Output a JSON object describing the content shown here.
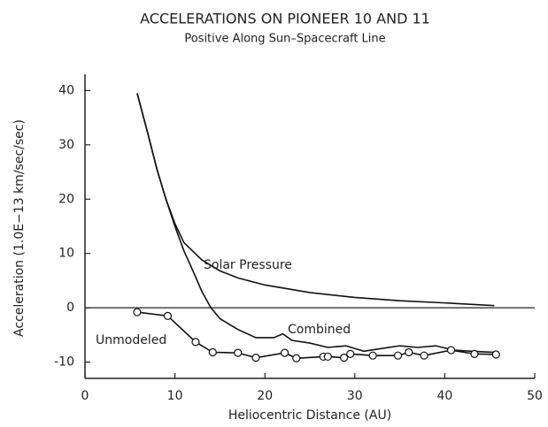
{
  "chart_data": {
    "type": "line",
    "title": "ACCELERATIONS ON PIONEER 10 AND 11",
    "subtitle": "Positive Along Sun–Spacecraft Line",
    "x_label": "Heliocentric Distance (AU)",
    "y_label": "Acceleration (1.0E−13 km/sec/sec)",
    "xlim": [
      0,
      50
    ],
    "ylim": [
      -13,
      43
    ],
    "xticks": [
      0,
      10,
      20,
      30,
      40,
      50
    ],
    "yticks": [
      -10,
      0,
      10,
      20,
      30,
      40
    ],
    "zero_line": true,
    "series": [
      {
        "name": "Solar Pressure",
        "color": "#111111",
        "marker": "none",
        "x": [
          5.8,
          7,
          8,
          9,
          10,
          11,
          13,
          15,
          17,
          20,
          25,
          30,
          35,
          40,
          45.5
        ],
        "values": [
          39.5,
          32,
          25.5,
          20,
          15.5,
          12,
          8.8,
          6.8,
          5.5,
          4.2,
          2.8,
          1.9,
          1.3,
          0.9,
          0.4
        ]
      },
      {
        "name": "Combined",
        "color": "#111111",
        "marker": "none",
        "x": [
          5.8,
          7,
          8,
          9,
          10,
          11,
          12,
          13,
          14,
          15,
          17,
          19,
          21,
          22,
          23,
          25,
          27,
          29,
          31,
          33,
          35,
          37,
          39,
          41,
          43,
          45.5
        ],
        "values": [
          39.5,
          32,
          25.5,
          20,
          15,
          10.5,
          6.8,
          3,
          0,
          -2,
          -4,
          -5.5,
          -5.5,
          -4.8,
          -6,
          -6.5,
          -7.3,
          -7,
          -8,
          -7.5,
          -7,
          -7.3,
          -7,
          -7.8,
          -8,
          -8.2
        ]
      },
      {
        "name": "Unmodeled",
        "color": "#111111",
        "marker": "circle",
        "x": [
          5.8,
          9.2,
          12.3,
          14.2,
          17,
          19,
          22.2,
          23.5,
          26.5,
          27,
          28.8,
          29.5,
          32,
          34.8,
          36,
          37.7,
          40.7,
          43.3,
          45.7
        ],
        "values": [
          -0.8,
          -1.5,
          -6.3,
          -8.2,
          -8.3,
          -9.2,
          -8.3,
          -9.3,
          -9,
          -9,
          -9.2,
          -8.5,
          -8.8,
          -8.8,
          -8.2,
          -8.8,
          -7.8,
          -8.5,
          -8.6
        ]
      }
    ]
  }
}
